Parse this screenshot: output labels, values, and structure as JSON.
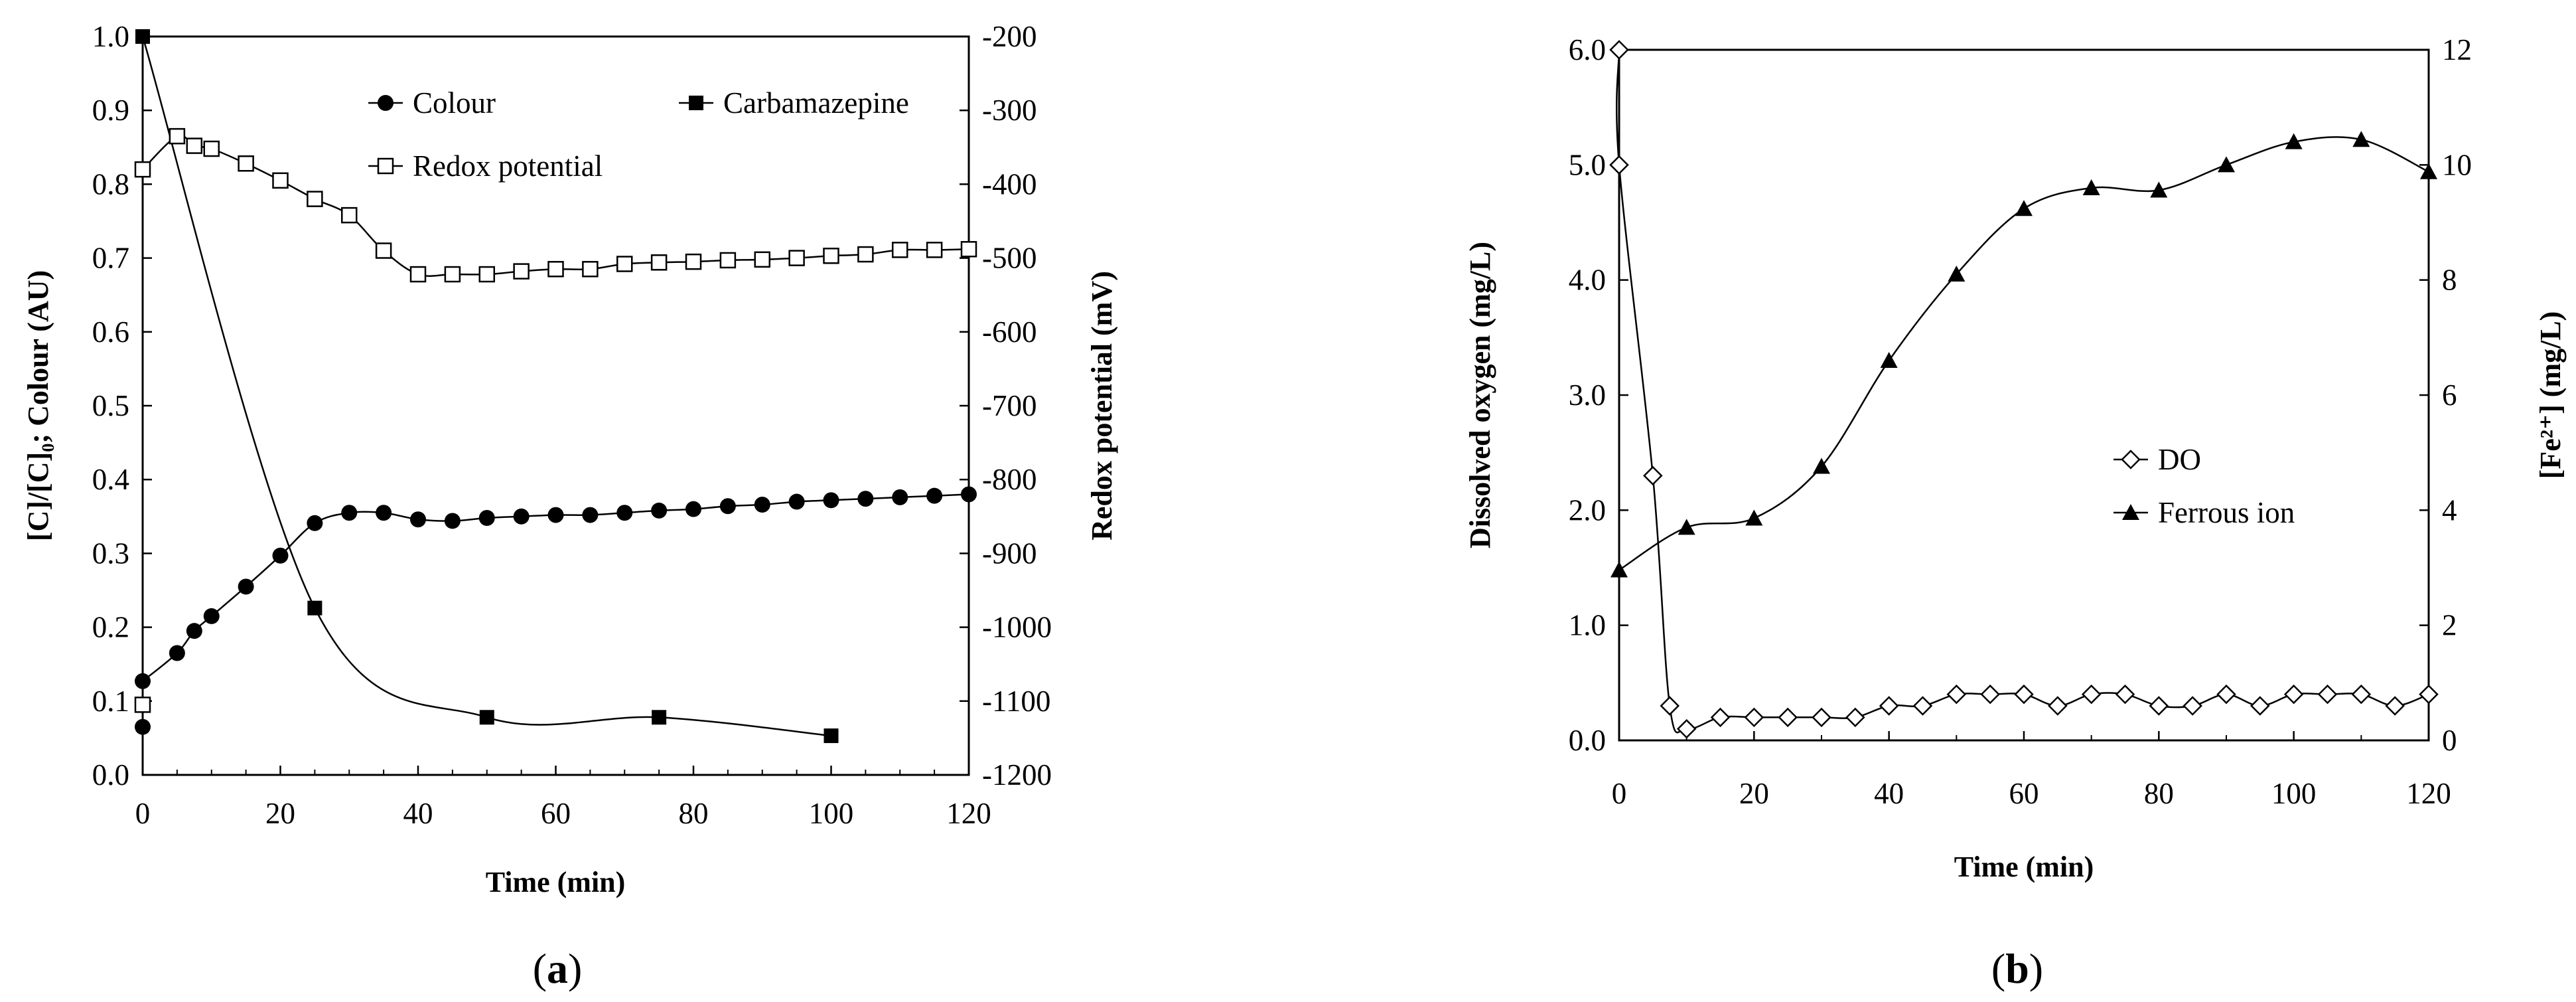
{
  "chart_data": [
    {
      "type": "line",
      "panel_label": "a",
      "xlabel": "Time (min)",
      "ylabel": "[C]/[C]₀; Colour (AU)",
      "y2label": "Redox potential (mV)",
      "xlim": [
        0,
        120
      ],
      "ylim": [
        0,
        1.0
      ],
      "y2lim": [
        -1200,
        -200
      ],
      "xticks": [
        "0",
        "20",
        "40",
        "60",
        "80",
        "100",
        "120"
      ],
      "yticks": [
        "0.0",
        "0.1",
        "0.2",
        "0.3",
        "0.4",
        "0.5",
        "0.6",
        "0.7",
        "0.8",
        "0.9",
        "1.0"
      ],
      "y2ticks": [
        "-200",
        "-300",
        "-400",
        "-500",
        "-600",
        "-700",
        "-800",
        "-900",
        "-1000",
        "-1100",
        "-1200"
      ],
      "series": [
        {
          "name": "Colour",
          "marker": "filled-circle",
          "axis": "left",
          "x": [
            0,
            5,
            7.5,
            10,
            15,
            20,
            25,
            30,
            35,
            40,
            45,
            50,
            55,
            60,
            65,
            70,
            75,
            80,
            85,
            90,
            95,
            100,
            105,
            110,
            115,
            120
          ],
          "values": [
            0.127,
            0.165,
            0.195,
            0.215,
            0.255,
            0.297,
            0.341,
            0.355,
            0.355,
            0.346,
            0.344,
            0.348,
            0.35,
            0.352,
            0.352,
            0.355,
            0.358,
            0.36,
            0.364,
            0.366,
            0.37,
            0.372,
            0.374,
            0.376,
            0.378,
            0.38
          ],
          "outlier": {
            "x": 0,
            "y": 0.065
          }
        },
        {
          "name": "Carbamazepine",
          "marker": "filled-square",
          "axis": "left",
          "x": [
            0,
            25,
            50,
            75,
            100
          ],
          "values": [
            1.0,
            0.226,
            0.078,
            0.078,
            0.053
          ]
        },
        {
          "name": "Redox potential",
          "marker": "open-square",
          "axis": "right",
          "x": [
            0,
            5,
            7.5,
            10,
            15,
            20,
            25,
            30,
            35,
            40,
            45,
            50,
            55,
            60,
            65,
            70,
            75,
            80,
            85,
            90,
            95,
            100,
            105,
            110,
            115,
            120
          ],
          "values": [
            -380,
            -335,
            -348,
            -352,
            -372,
            -395,
            -420,
            -442,
            -490,
            -522,
            -522,
            -522,
            -518,
            -515,
            -515,
            -508,
            -506,
            -505,
            -503,
            -502,
            -500,
            -497,
            -495,
            -489,
            -489,
            -488
          ],
          "outlier": {
            "x": 0,
            "y": -1105
          }
        }
      ],
      "legend": [
        "Colour",
        "Carbamazepine",
        "Redox potential"
      ]
    },
    {
      "type": "line",
      "panel_label": "b",
      "xlabel": "Time (min)",
      "ylabel": "Dissolved oxygen (mg/L)",
      "y2label": "[Fe²⁺] (mg/L)",
      "xlim": [
        0,
        120
      ],
      "ylim": [
        0,
        6.0
      ],
      "y2lim": [
        0,
        12
      ],
      "xticks": [
        "0",
        "20",
        "40",
        "60",
        "80",
        "100",
        "120"
      ],
      "yticks": [
        "0.0",
        "1.0",
        "2.0",
        "3.0",
        "4.0",
        "5.0",
        "6.0"
      ],
      "y2ticks": [
        "0",
        "2",
        "4",
        "6",
        "8",
        "10",
        "12"
      ],
      "series": [
        {
          "name": "DO",
          "marker": "open-diamond",
          "axis": "left",
          "x": [
            0,
            0,
            5,
            7.5,
            10,
            15,
            20,
            25,
            30,
            35,
            40,
            45,
            50,
            55,
            60,
            65,
            70,
            75,
            80,
            85,
            90,
            95,
            100,
            105,
            110,
            115,
            120
          ],
          "values": [
            6.0,
            5.0,
            2.3,
            0.3,
            0.1,
            0.2,
            0.2,
            0.2,
            0.2,
            0.2,
            0.3,
            0.3,
            0.4,
            0.4,
            0.4,
            0.3,
            0.4,
            0.4,
            0.3,
            0.3,
            0.4,
            0.3,
            0.4,
            0.4,
            0.4,
            0.3,
            0.4
          ]
        },
        {
          "name": "Ferrous ion",
          "marker": "filled-triangle",
          "axis": "right",
          "x": [
            0,
            10,
            20,
            30,
            40,
            50,
            60,
            70,
            80,
            90,
            100,
            110,
            120
          ],
          "values": [
            2.96,
            3.7,
            3.86,
            4.76,
            6.6,
            8.1,
            9.24,
            9.6,
            9.56,
            10.0,
            10.4,
            10.44,
            9.88
          ]
        }
      ],
      "legend": [
        "DO",
        "Ferrous ion"
      ]
    }
  ]
}
